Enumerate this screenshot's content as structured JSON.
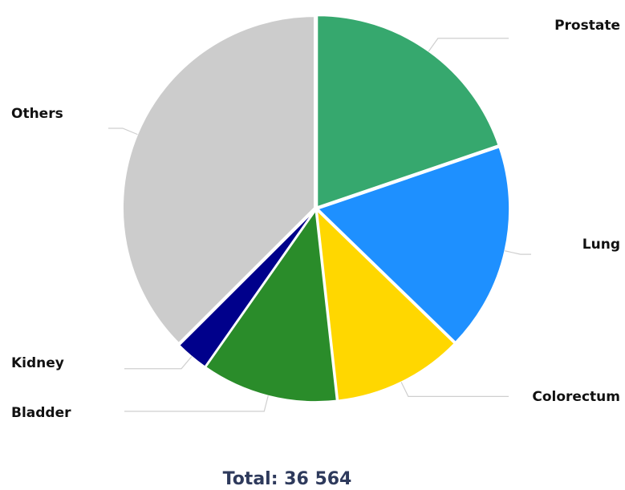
{
  "chart_data": {
    "type": "pie",
    "title": "",
    "slices": [
      {
        "name": "Prostate",
        "value": 7230,
        "color": "#36a86e"
      },
      {
        "name": "Lung",
        "value": 6390,
        "color": "#1e90ff"
      },
      {
        "name": "Colorectum",
        "value": 4020,
        "color": "#ffd700"
      },
      {
        "name": "Bladder",
        "value": 4200,
        "color": "#2a8c2a"
      },
      {
        "name": "Kidney",
        "value": 1020,
        "color": "#00008b"
      },
      {
        "name": "Others",
        "value": 13704,
        "color": "#cccccc"
      }
    ],
    "total_label": "Total: 36 564",
    "legend": "none"
  }
}
